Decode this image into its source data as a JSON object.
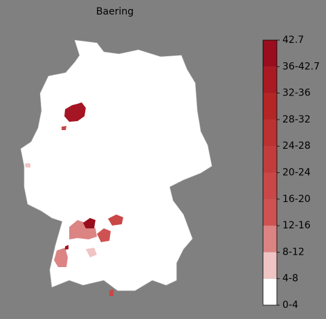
{
  "title": "Baering",
  "colorbar": {
    "labels": [
      "0-4",
      "4-8",
      "8-12",
      "12-16",
      "16-20",
      "20-24",
      "24-28",
      "28-32",
      "32-36",
      "36-42.7",
      "42.7"
    ],
    "colors": [
      "#ffffff",
      "#f0c4c4",
      "#dc8484",
      "#cf5252",
      "#c94747",
      "#c33c3c",
      "#bc3131",
      "#b42626",
      "#a91a22",
      "#9a0d1e"
    ]
  }
}
